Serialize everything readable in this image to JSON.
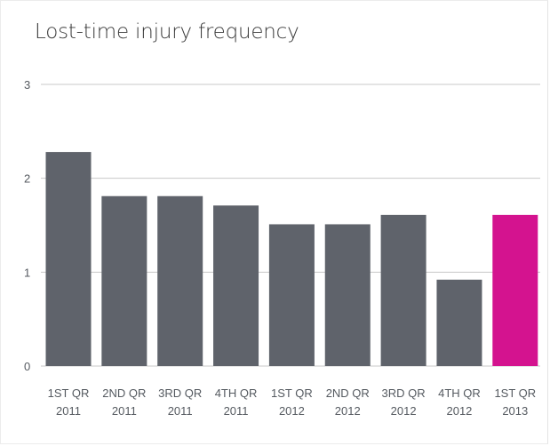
{
  "chart_data": {
    "type": "bar",
    "title": "Lost-time injury frequency",
    "xlabel": "",
    "ylabel": "",
    "ylim": [
      0,
      3
    ],
    "yticks": [
      "0",
      "1",
      "2",
      "3"
    ],
    "grid": true,
    "legend": "none",
    "categories": [
      [
        "1ST QR",
        "2011"
      ],
      [
        "2ND QR",
        "2011"
      ],
      [
        "3RD QR",
        "2011"
      ],
      [
        "4TH QR",
        "2011"
      ],
      [
        "1ST QR",
        "2012"
      ],
      [
        "2ND QR",
        "2012"
      ],
      [
        "3RD QR",
        "2012"
      ],
      [
        "4TH QR",
        "2012"
      ],
      [
        "1ST QR",
        "2013"
      ]
    ],
    "values": [
      2.28,
      1.81,
      1.81,
      1.71,
      1.51,
      1.51,
      1.61,
      0.92,
      1.61
    ],
    "colors": {
      "bar": "#5f636b",
      "highlight": "#d4138f",
      "grid": "#c8c8c8"
    },
    "highlight_index": 8
  }
}
